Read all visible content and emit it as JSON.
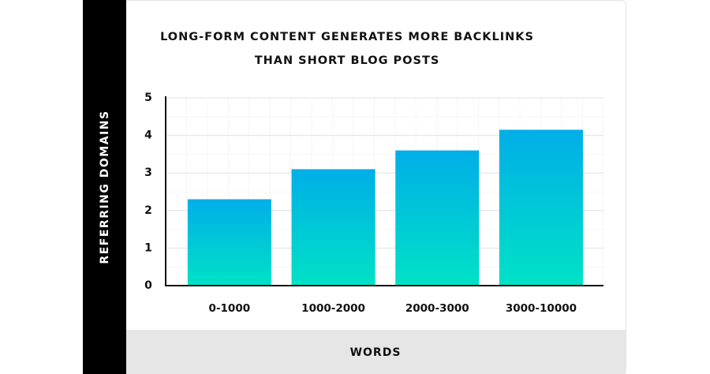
{
  "chart_data": {
    "type": "bar",
    "title": [
      "LONG-FORM CONTENT GENERATES MORE BACKLINKS",
      "THAN SHORT BLOG POSTS"
    ],
    "x_label": "WORDS",
    "y_label": "REFERRING DOMAINS",
    "categories": [
      "0-1000",
      "1000-2000",
      "2000-3000",
      "3000-10000"
    ],
    "values": [
      2.3,
      3.1,
      3.6,
      4.15
    ],
    "color": [
      "#00aee8",
      "#00e2c6"
    ],
    "ylim": [
      0,
      5
    ],
    "yticks": [
      0,
      1,
      2,
      3,
      4,
      5
    ],
    "grid": true
  }
}
